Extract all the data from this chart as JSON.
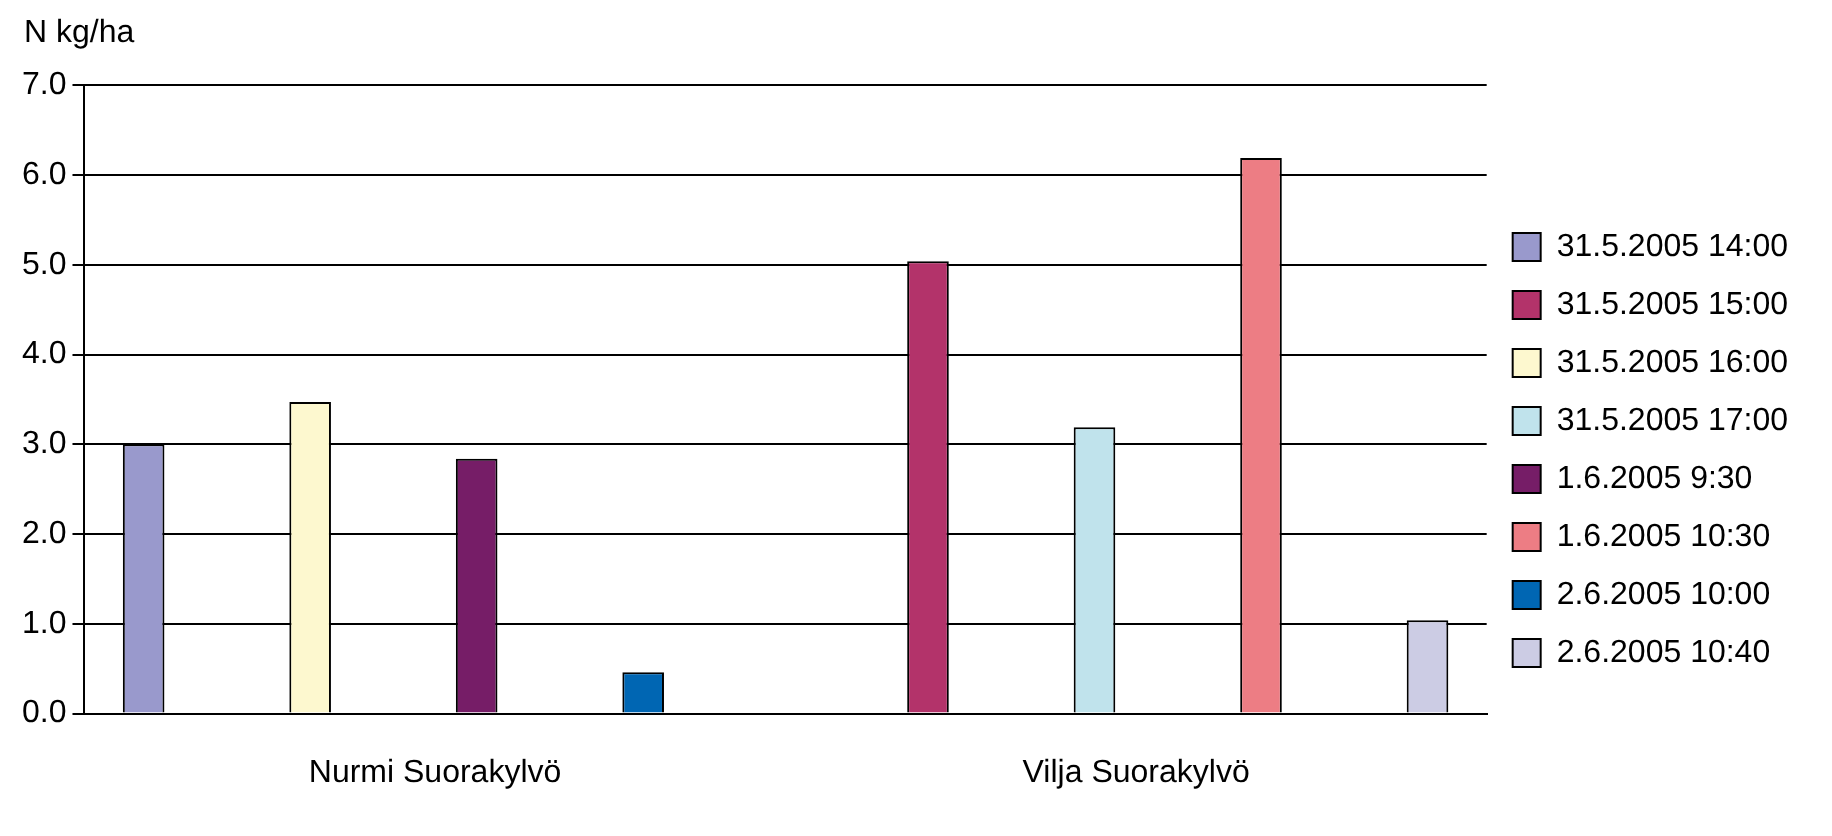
{
  "chart_data": {
    "type": "bar",
    "ylabel": "N kg/ha",
    "categories": [
      "Nurmi Suorakylvö",
      "Vilja Suorakylvö"
    ],
    "series": [
      {
        "name": "31.5.2005 14:00",
        "color": "#9999cc",
        "values": [
          3.0,
          null
        ]
      },
      {
        "name": "31.5.2005 15:00",
        "color": "#b3336a",
        "values": [
          null,
          5.04
        ]
      },
      {
        "name": "31.5.2005 16:00",
        "color": "#fdf8cf",
        "values": [
          3.47,
          null
        ]
      },
      {
        "name": "31.5.2005 17:00",
        "color": "#c0e3ec",
        "values": [
          null,
          3.19
        ]
      },
      {
        "name": "1.6.2005 9:30",
        "color": "#761d67",
        "values": [
          2.84,
          null
        ]
      },
      {
        "name": "1.6.2005 10:30",
        "color": "#ed7d84",
        "values": [
          null,
          6.19
        ]
      },
      {
        "name": "2.6.2005 10:00",
        "color": "#0066b3",
        "values": [
          0.46,
          null
        ]
      },
      {
        "name": "2.6.2005 10:40",
        "color": "#cccce4",
        "values": [
          null,
          1.04
        ]
      }
    ],
    "ylim": [
      0,
      7
    ],
    "yticks": [
      {
        "value": 0,
        "label": "0.0"
      },
      {
        "value": 1,
        "label": "1.0"
      },
      {
        "value": 2,
        "label": "2.0"
      },
      {
        "value": 3,
        "label": "3.0"
      },
      {
        "value": 4,
        "label": "4.0"
      },
      {
        "value": 5,
        "label": "5.0"
      },
      {
        "value": 6,
        "label": "6.0"
      },
      {
        "value": 7,
        "label": "7.0"
      }
    ],
    "grid": "y",
    "legend": "right"
  }
}
